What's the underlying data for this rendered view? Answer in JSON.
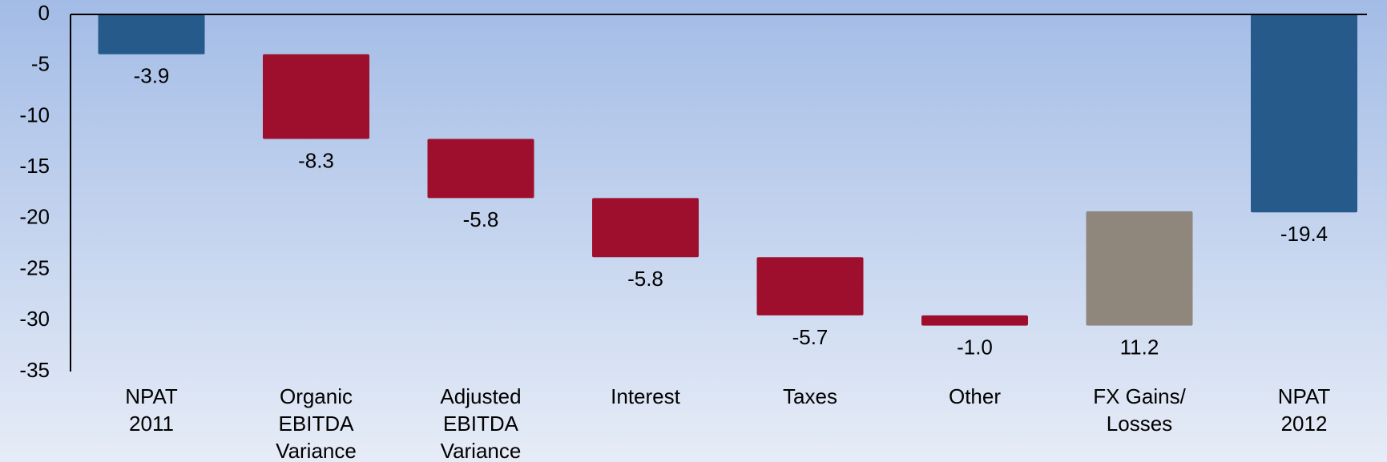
{
  "chart_data": {
    "type": "waterfall",
    "categories": [
      [
        "NPAT",
        "2011"
      ],
      [
        "Organic",
        "EBITDA",
        "Variance"
      ],
      [
        "Adjusted",
        "EBITDA",
        "Variance"
      ],
      [
        "Interest"
      ],
      [
        "Taxes"
      ],
      [
        "Other"
      ],
      [
        "FX Gains/",
        "Losses"
      ],
      [
        "NPAT",
        "2012"
      ]
    ],
    "values": [
      -3.9,
      -8.3,
      -5.8,
      -5.8,
      -5.7,
      -1.0,
      11.2,
      -19.4
    ],
    "value_labels": [
      "-3.9",
      "-8.3",
      "-5.8",
      "-5.8",
      "-5.7",
      "-1.0",
      "11.2",
      "-19.4"
    ],
    "is_total": [
      true,
      false,
      false,
      false,
      false,
      false,
      false,
      true
    ],
    "total_color": "#255a8a",
    "decrease_color": "#9e0f2d",
    "increase_color": "#8f877c",
    "ylim": [
      -35,
      0
    ],
    "yticks": [
      0,
      -5,
      -10,
      -15,
      -20,
      -25,
      -30,
      -35
    ],
    "grid": false
  }
}
